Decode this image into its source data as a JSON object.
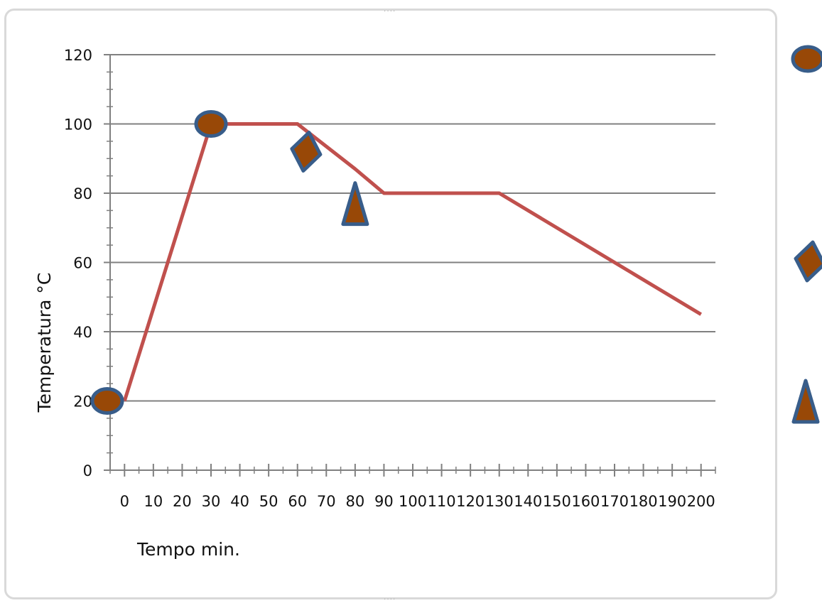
{
  "chart_data": {
    "type": "line",
    "xlabel": "Tempo min.",
    "ylabel": "Temperatura °C",
    "xlim": [
      -5,
      205
    ],
    "ylim": [
      0,
      120
    ],
    "x_ticks": [
      0,
      10,
      20,
      30,
      40,
      50,
      60,
      70,
      80,
      90,
      100,
      110,
      120,
      130,
      140,
      150,
      160,
      170,
      180,
      190,
      200
    ],
    "y_ticks": [
      0,
      20,
      40,
      60,
      80,
      100,
      120
    ],
    "grid": "horizontal",
    "series": [
      {
        "color": "#c0504d",
        "x": [
          0,
          30,
          60,
          80,
          90,
          130,
          200
        ],
        "y": [
          20,
          100,
          100,
          87,
          80,
          80,
          45
        ]
      }
    ],
    "markers": [
      {
        "shape": "ellipse",
        "x": -6,
        "y": 20
      },
      {
        "shape": "ellipse",
        "x": 30,
        "y": 100
      },
      {
        "shape": "diamond",
        "x": 63,
        "y": 92
      },
      {
        "shape": "triangle",
        "x": 80,
        "y": 77
      }
    ],
    "legend_markers": [
      "ellipse",
      "diamond",
      "triangle"
    ],
    "marker_fill": "#984807",
    "marker_stroke": "#385d8a",
    "grid_color": "#808080",
    "axis_color": "#808080"
  }
}
